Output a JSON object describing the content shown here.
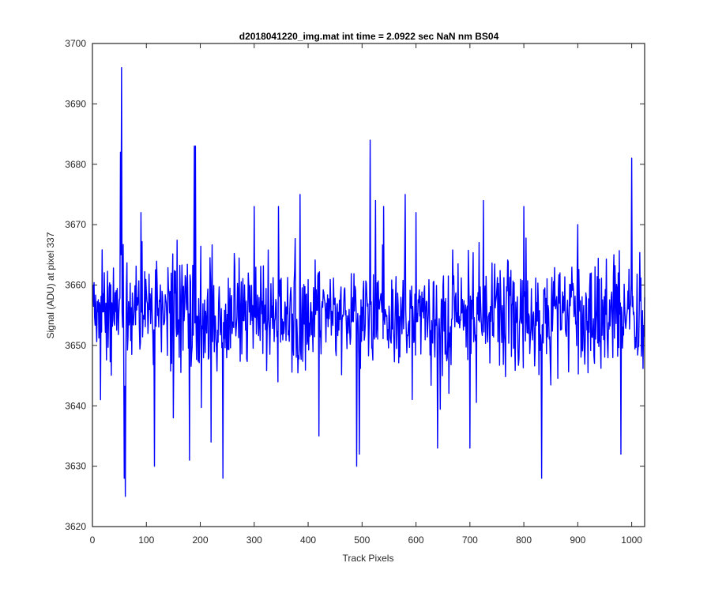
{
  "chart_data": {
    "type": "line",
    "title": "d2018041220_img.mat int time = 2.0922 sec  NaN nm BS04",
    "xlabel": "Track Pixels",
    "ylabel": "Signal (ADU) at pixel 337",
    "xlim": [
      0,
      1024
    ],
    "ylim": [
      3620,
      3700
    ],
    "xticks": [
      0,
      100,
      200,
      300,
      400,
      500,
      600,
      700,
      800,
      900,
      1000
    ],
    "yticks": [
      3620,
      3630,
      3640,
      3650,
      3660,
      3670,
      3680,
      3690,
      3700
    ],
    "grid": false,
    "box": true,
    "series": [
      {
        "color": "#0000ff",
        "description": "Noisy signal fluctuating around ~3655 ADU over 1024 track pixels",
        "mean": 3655,
        "n_points": 1024,
        "notable_points": [
          {
            "x": 1,
            "y": 3660
          },
          {
            "x": 15,
            "y": 3641
          },
          {
            "x": 52,
            "y": 3682
          },
          {
            "x": 54,
            "y": 3696
          },
          {
            "x": 59,
            "y": 3628
          },
          {
            "x": 61,
            "y": 3625
          },
          {
            "x": 90,
            "y": 3672
          },
          {
            "x": 115,
            "y": 3630
          },
          {
            "x": 150,
            "y": 3638
          },
          {
            "x": 180,
            "y": 3631
          },
          {
            "x": 189,
            "y": 3683
          },
          {
            "x": 191,
            "y": 3683
          },
          {
            "x": 220,
            "y": 3634
          },
          {
            "x": 242,
            "y": 3628
          },
          {
            "x": 300,
            "y": 3673
          },
          {
            "x": 345,
            "y": 3673
          },
          {
            "x": 385,
            "y": 3675
          },
          {
            "x": 420,
            "y": 3635
          },
          {
            "x": 490,
            "y": 3630
          },
          {
            "x": 495,
            "y": 3632
          },
          {
            "x": 515,
            "y": 3684
          },
          {
            "x": 525,
            "y": 3674
          },
          {
            "x": 540,
            "y": 3673
          },
          {
            "x": 580,
            "y": 3675
          },
          {
            "x": 600,
            "y": 3672
          },
          {
            "x": 640,
            "y": 3633
          },
          {
            "x": 700,
            "y": 3633
          },
          {
            "x": 725,
            "y": 3674
          },
          {
            "x": 800,
            "y": 3673
          },
          {
            "x": 833,
            "y": 3628
          },
          {
            "x": 900,
            "y": 3670
          },
          {
            "x": 980,
            "y": 3632
          },
          {
            "x": 1000,
            "y": 3681
          },
          {
            "x": 1024,
            "y": 3658
          }
        ]
      }
    ]
  }
}
